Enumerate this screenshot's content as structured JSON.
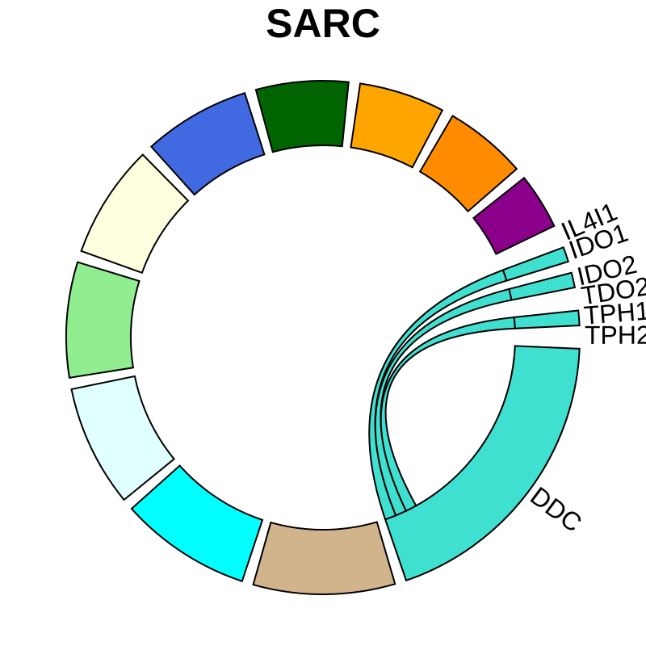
{
  "chart_data": {
    "type": "chord",
    "title": "SARC",
    "sectors": [
      {
        "name": "DDC",
        "color": "#40E0D0",
        "value": 18.4
      },
      {
        "name": "",
        "color": "#D2B48C",
        "value": 8.6
      },
      {
        "name": "",
        "color": "#00FFFF",
        "value": 8.0
      },
      {
        "name": "",
        "color": "#E0FFFF",
        "value": 7.4
      },
      {
        "name": "",
        "color": "#90EE90",
        "value": 7.0
      },
      {
        "name": "",
        "color": "#FFFFE0",
        "value": 6.9
      },
      {
        "name": "",
        "color": "#4169E1",
        "value": 6.5
      },
      {
        "name": "",
        "color": "#006400",
        "value": 5.6
      },
      {
        "name": "",
        "color": "#FFA500",
        "value": 5.2
      },
      {
        "name": "",
        "color": "#FF8C00",
        "value": 5.0
      },
      {
        "name": "",
        "color": "#8B008B",
        "value": 3.4
      },
      {
        "name": "IL4I1",
        "color": "#40E0D0",
        "value": 0
      },
      {
        "name": "IDO1",
        "color": "#40E0D0",
        "value": 0.9
      },
      {
        "name": "IDO2",
        "color": "#40E0D0",
        "value": 0.9
      },
      {
        "name": "TDO2",
        "color": "#40E0D0",
        "value": 0
      },
      {
        "name": "TPH1",
        "color": "#40E0D0",
        "value": 0.9
      },
      {
        "name": "TPH2",
        "color": "#40E0D0",
        "value": 0
      }
    ],
    "links": [
      {
        "from": "DDC",
        "to": "IDO1",
        "value": 0.9,
        "color": "#40E0D0"
      },
      {
        "from": "DDC",
        "to": "IDO2",
        "value": 0.9,
        "color": "#40E0D0"
      },
      {
        "from": "DDC",
        "to": "TPH1",
        "value": 0.9,
        "color": "#40E0D0"
      }
    ]
  }
}
